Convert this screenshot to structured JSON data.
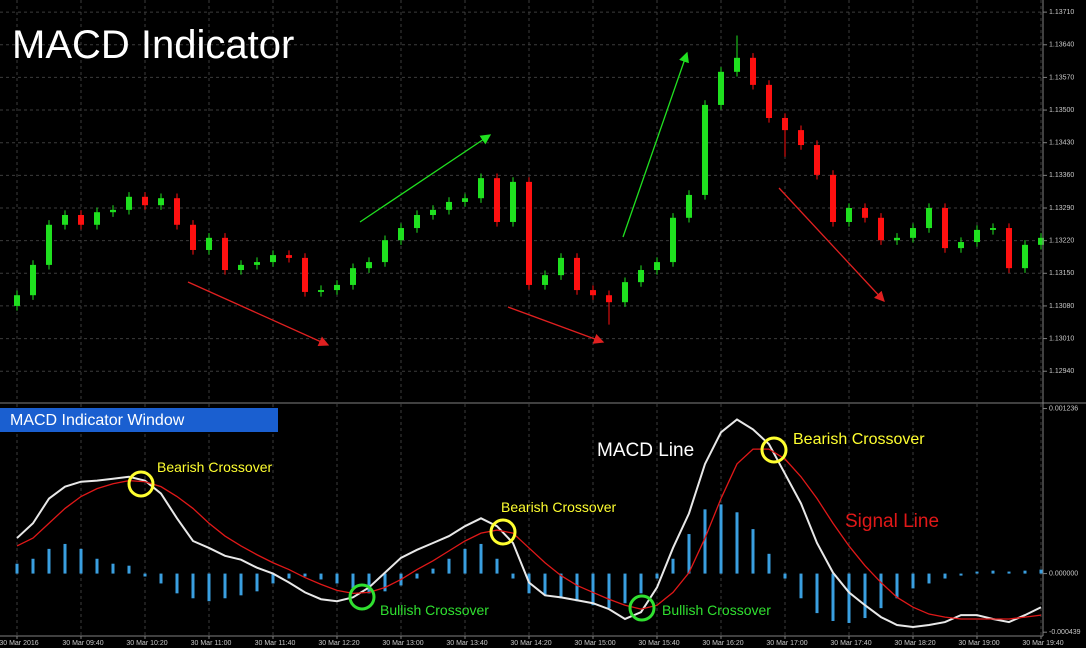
{
  "chart_data": [
    {
      "type": "candlestick",
      "title": "MACD Indicator",
      "x": [
        0,
        10,
        20,
        30,
        40,
        50,
        60,
        70,
        80,
        90,
        100,
        110,
        120,
        130,
        140,
        150,
        160,
        170,
        180,
        190,
        200,
        210,
        220,
        230,
        240,
        250,
        260,
        270,
        280,
        290,
        300,
        310,
        320,
        330,
        340,
        350,
        360,
        370,
        380,
        390,
        400,
        410,
        420,
        430,
        440,
        450,
        460,
        470,
        480,
        490,
        500,
        510,
        520,
        530,
        540,
        550,
        560,
        570,
        580,
        590,
        600,
        610,
        620,
        630,
        640
      ],
      "open": [
        1.1308,
        1.13103,
        1.13168,
        1.13254,
        1.13275,
        1.13254,
        1.13281,
        1.13286,
        1.13314,
        1.13296,
        1.13311,
        1.13254,
        1.132,
        1.13226,
        1.13157,
        1.13168,
        1.13174,
        1.13189,
        1.13183,
        1.1311,
        1.13114,
        1.13125,
        1.13161,
        1.13174,
        1.13221,
        1.13247,
        1.13275,
        1.13286,
        1.13303,
        1.13311,
        1.13354,
        1.1326,
        1.13346,
        1.13125,
        1.13146,
        1.13183,
        1.13114,
        1.13103,
        1.13088,
        1.13131,
        1.13157,
        1.13174,
        1.13269,
        1.13318,
        1.13511,
        1.13582,
        1.13612,
        1.13554,
        1.13483,
        1.13457,
        1.13425,
        1.13361,
        1.1326,
        1.1329,
        1.13269,
        1.13221,
        1.13226,
        1.13247,
        1.1329,
        1.13204,
        1.13217,
        1.13243,
        1.13247,
        1.13161,
        1.13211
      ],
      "high": [
        1.13113,
        1.13178,
        1.13264,
        1.13285,
        1.13285,
        1.13291,
        1.13296,
        1.13324,
        1.13324,
        1.13321,
        1.13321,
        1.13264,
        1.13236,
        1.13236,
        1.13178,
        1.13184,
        1.13199,
        1.13199,
        1.13193,
        1.13124,
        1.13135,
        1.13171,
        1.13184,
        1.13231,
        1.13257,
        1.13285,
        1.13296,
        1.13313,
        1.13321,
        1.13364,
        1.13364,
        1.13356,
        1.13356,
        1.13156,
        1.13193,
        1.13193,
        1.13124,
        1.13113,
        1.13141,
        1.13167,
        1.13184,
        1.13279,
        1.13328,
        1.13521,
        1.13592,
        1.1366,
        1.13622,
        1.13564,
        1.13493,
        1.13467,
        1.13435,
        1.13371,
        1.133,
        1.133,
        1.13279,
        1.13236,
        1.13257,
        1.133,
        1.133,
        1.13227,
        1.13253,
        1.13257,
        1.13257,
        1.13221,
        1.13236
      ],
      "low": [
        1.1307,
        1.13093,
        1.13158,
        1.13244,
        1.13244,
        1.13244,
        1.13271,
        1.13276,
        1.13286,
        1.13286,
        1.13244,
        1.1319,
        1.1319,
        1.13147,
        1.13147,
        1.13158,
        1.13164,
        1.13173,
        1.131,
        1.131,
        1.13104,
        1.13115,
        1.13151,
        1.13164,
        1.13211,
        1.13237,
        1.13265,
        1.13276,
        1.13293,
        1.13301,
        1.1325,
        1.1325,
        1.13115,
        1.13115,
        1.13136,
        1.13104,
        1.13093,
        1.1304,
        1.13078,
        1.13121,
        1.13147,
        1.13164,
        1.13259,
        1.13308,
        1.13501,
        1.13572,
        1.13544,
        1.13473,
        1.134,
        1.13415,
        1.13351,
        1.1325,
        1.1325,
        1.13259,
        1.13211,
        1.13211,
        1.13216,
        1.13237,
        1.13194,
        1.13194,
        1.13207,
        1.13233,
        1.13151,
        1.13151,
        1.13201
      ],
      "close": [
        1.13103,
        1.13168,
        1.13254,
        1.13275,
        1.13254,
        1.13281,
        1.13286,
        1.13314,
        1.13296,
        1.13311,
        1.13254,
        1.132,
        1.13226,
        1.13157,
        1.13168,
        1.13174,
        1.13189,
        1.13183,
        1.1311,
        1.13114,
        1.13125,
        1.13161,
        1.13174,
        1.13221,
        1.13247,
        1.13275,
        1.13286,
        1.13303,
        1.13311,
        1.13354,
        1.1326,
        1.13346,
        1.13125,
        1.13146,
        1.13183,
        1.13114,
        1.13103,
        1.13088,
        1.13131,
        1.13157,
        1.13174,
        1.13269,
        1.13318,
        1.13511,
        1.13582,
        1.13612,
        1.13554,
        1.13483,
        1.13457,
        1.13425,
        1.13361,
        1.1326,
        1.1329,
        1.13269,
        1.13221,
        1.13226,
        1.13247,
        1.1329,
        1.13204,
        1.13217,
        1.13243,
        1.13247,
        1.13161,
        1.13211,
        1.13226
      ],
      "up_color": "#1fe01f",
      "down_color": "#ff1010",
      "xlim": [
        -10.625,
        641.25
      ],
      "ylim": [
        1.12874,
        1.13736
      ],
      "yticks": [
        {
          "value": 1.1371,
          "label": "1.13710"
        },
        {
          "value": 1.1364,
          "label": "1.13640"
        },
        {
          "value": 1.1357,
          "label": "1.13570"
        },
        {
          "value": 1.135,
          "label": "1.13500"
        },
        {
          "value": 1.1343,
          "label": "1.13430"
        },
        {
          "value": 1.1336,
          "label": "1.13360"
        },
        {
          "value": 1.1329,
          "label": "1.13290"
        },
        {
          "value": 1.1322,
          "label": "1.13220"
        },
        {
          "value": 1.1315,
          "label": "1.13150"
        },
        {
          "value": 1.1308,
          "label": "1.13080"
        },
        {
          "value": 1.1301,
          "label": "1.13010"
        },
        {
          "value": 1.1294,
          "label": "1.12940"
        }
      ],
      "grid": true
    },
    {
      "type": "macd",
      "title": "MACD Indicator Window",
      "x": [
        0,
        10,
        20,
        30,
        40,
        50,
        60,
        70,
        80,
        90,
        100,
        110,
        120,
        130,
        140,
        150,
        160,
        170,
        180,
        190,
        200,
        210,
        220,
        230,
        240,
        250,
        260,
        270,
        280,
        290,
        300,
        310,
        320,
        330,
        340,
        350,
        360,
        370,
        380,
        390,
        400,
        410,
        420,
        430,
        440,
        450,
        460,
        470,
        480,
        490,
        500,
        510,
        520,
        530,
        540,
        550,
        560,
        570,
        580,
        590,
        600,
        610,
        620,
        630,
        640
      ],
      "histogram": {
        "color": "#3a9fe0",
        "values": [
          7.4e-05,
          0.000111,
          0.000185,
          0.000222,
          0.000185,
          0.000111,
          7.4e-05,
          5.9e-05,
          -2.2e-05,
          -7.4e-05,
          -0.000148,
          -0.000185,
          -0.000207,
          -0.000185,
          -0.000163,
          -0.000133,
          -7.4e-05,
          -3.7e-05,
          -2.2e-05,
          -4.4e-05,
          -7.4e-05,
          -0.000111,
          -0.000148,
          -0.000133,
          -8.9e-05,
          -3.7e-05,
          3.7e-05,
          0.000111,
          0.000185,
          0.000222,
          0.000111,
          -3.7e-05,
          -0.000148,
          -0.000163,
          -0.000185,
          -0.000207,
          -0.000237,
          -0.000259,
          -0.000222,
          -0.000148,
          -3.7e-05,
          0.000111,
          0.000296,
          0.000481,
          0.000518,
          0.000459,
          0.000333,
          0.000148,
          -3.7e-05,
          -0.000185,
          -0.000296,
          -0.000355,
          -0.00037,
          -0.000333,
          -0.000259,
          -0.000185,
          -0.000111,
          -7.4e-05,
          -3.7e-05,
          -1.5e-05,
          1.5e-05,
          2.2e-05,
          1.5e-05,
          2.2e-05,
          3e-05
        ]
      },
      "series": [
        {
          "name": "MACD Line",
          "color": "#e8e8e8",
          "values": [
            0.000266,
            0.000377,
            0.000562,
            0.000651,
            0.000688,
            0.000696,
            0.00071,
            0.000725,
            0.000696,
            0.000599,
            0.000414,
            0.000244,
            0.000192,
            0.000133,
            0.000104,
            4.4e-05,
            0,
            -6.7e-05,
            -0.000141,
            -0.000192,
            -0.000207,
            -0.000178,
            -0.000104,
            7e-06,
            0.000118,
            0.000178,
            0.000229,
            0.000281,
            0.000355,
            0.000414,
            0.000355,
            0.000229,
            -6.7e-05,
            -0.000163,
            -0.000178,
            -0.0002,
            -0.000222,
            -0.000266,
            -0.00034,
            -0.000289,
            -0.000104,
            0.000192,
            0.000451,
            0.000821,
            0.001058,
            0.001154,
            0.00108,
            0.000969,
            0.000747,
            0.000525,
            0.000229,
            7e-06,
            -0.000141,
            -0.000237,
            -0.000326,
            -0.000385,
            -0.0004,
            -0.000385,
            -0.000363,
            -0.000311,
            -0.000311,
            -0.00034,
            -0.000363,
            -0.000311,
            -0.000252
          ]
        },
        {
          "name": "Signal Line",
          "color": "#e01818",
          "values": [
            0.000207,
            0.000266,
            0.000377,
            0.000488,
            0.000577,
            0.000636,
            0.000673,
            0.000696,
            0.000688,
            0.000651,
            0.000577,
            0.000488,
            0.000377,
            0.000281,
            0.000207,
            0.000141,
            8.1e-05,
            3e-05,
            -3e-05,
            -8.1e-05,
            -0.000126,
            -0.000148,
            -0.000141,
            -0.000104,
            -4.4e-05,
            3e-05,
            9.6e-05,
            0.00017,
            0.000244,
            0.000303,
            0.000326,
            0.000303,
            0.000192,
            8.1e-05,
            -1.5e-05,
            -8.9e-05,
            -0.000141,
            -0.000192,
            -0.000237,
            -0.000266,
            -0.000237,
            -0.000141,
            7e-06,
            0.000266,
            0.000562,
            0.000821,
            0.000932,
            0.000932,
            0.000858,
            0.000725,
            0.000562,
            0.000377,
            0.000207,
            5.9e-05,
            -6.7e-05,
            -0.000178,
            -0.000252,
            -0.000303,
            -0.000326,
            -0.00034,
            -0.00034,
            -0.00034,
            -0.00034,
            -0.000326,
            -0.000311
          ]
        }
      ],
      "annotations": [
        "Bearish Crossover",
        "Bullish Crossover",
        "Bearish Crossover",
        "Bullish Crossover",
        "Bearish Crossover"
      ],
      "xlim": [
        -10.625,
        641.25
      ],
      "ylim": [
        -0.00046,
        0.00127
      ],
      "xticks": [
        {
          "value": 0,
          "label": "30 Mar 2016"
        },
        {
          "value": 40,
          "label": "30 Mar 09:40"
        },
        {
          "value": 80,
          "label": "30 Mar 10:20"
        },
        {
          "value": 120,
          "label": "30 Mar 11:00"
        },
        {
          "value": 160,
          "label": "30 Mar 11:40"
        },
        {
          "value": 200,
          "label": "30 Mar 12:20"
        },
        {
          "value": 240,
          "label": "30 Mar 13:00"
        },
        {
          "value": 280,
          "label": "30 Mar 13:40"
        },
        {
          "value": 320,
          "label": "30 Mar 14:20"
        },
        {
          "value": 360,
          "label": "30 Mar 15:00"
        },
        {
          "value": 400,
          "label": "30 Mar 15:40"
        },
        {
          "value": 440,
          "label": "30 Mar 16:20"
        },
        {
          "value": 480,
          "label": "30 Mar 17:00"
        },
        {
          "value": 520,
          "label": "30 Mar 17:40"
        },
        {
          "value": 560,
          "label": "30 Mar 18:20"
        },
        {
          "value": 600,
          "label": "30 Mar 19:00"
        },
        {
          "value": 640,
          "label": "30 Mar 19:40"
        }
      ],
      "yticks": [
        0.001236,
        {
          "value": 0,
          "label": "0.000000"
        },
        -0.000439
      ],
      "grid": true
    }
  ]
}
